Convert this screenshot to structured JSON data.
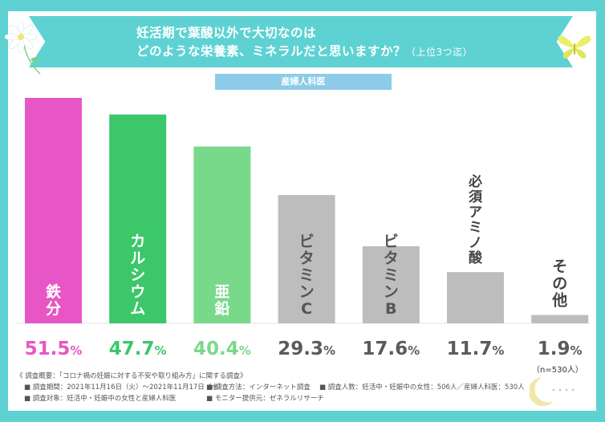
{
  "title": {
    "line1": "妊活期で葉酸以外で大切なのは",
    "line2_main": "どのような栄養素、ミネラルだと思いますか？",
    "line2_note": "（上位3つ迄）"
  },
  "group_label": "産婦人科医",
  "sample_note": "（n=530人）",
  "footer": {
    "survey_overview": "《 調査概要：「コロナ禍の妊娠に対する不安や取り組み方」に関する調査》",
    "period": "■ 調査期間：2021年11月16日（火）〜2021年11月17日（水）",
    "method": "■ 調査方法：インターネット調査",
    "respondents": "■ 調査人数：妊活中・妊娠中の女性：506人／産婦人科医：530人",
    "target": "■ 調査対象：妊活中・妊娠中の女性と産婦人科医",
    "provider": "■ モニター提供元：ゼネラルリサーチ"
  },
  "colors": {
    "frame": "#5ed2d3",
    "group_label_bg": "#8ecbe8",
    "iron": "#e855c4",
    "calcium": "#3cc76a",
    "zinc": "#79d98a",
    "gray": "#bdbdbd",
    "gray_text": "#5b5b5b"
  },
  "chart_data": {
    "type": "bar",
    "categories": [
      "鉄分",
      "カルシウム",
      "亜鉛",
      "ビタミンC",
      "ビタミンB",
      "必須アミノ酸",
      "その他"
    ],
    "values": [
      51.5,
      47.7,
      40.4,
      29.3,
      17.6,
      11.7,
      1.9
    ],
    "value_labels": [
      {
        "big": "51.5",
        "small": "%"
      },
      {
        "big": "47.7",
        "small": "%"
      },
      {
        "big": "40.4",
        "small": "%"
      },
      {
        "big": "29.3",
        "small": "%"
      },
      {
        "big": "17.6",
        "small": "%"
      },
      {
        "big": "11.7",
        "small": "%"
      },
      {
        "big": "1.9",
        "small": "%"
      }
    ],
    "bar_colors": [
      "#e855c4",
      "#3cc76a",
      "#79d98a",
      "#bdbdbd",
      "#bdbdbd",
      "#bdbdbd",
      "#bdbdbd"
    ],
    "label_colors": [
      "#e855c4",
      "#3cc76a",
      "#79d98a",
      "#5b5b5b",
      "#5b5b5b",
      "#5b5b5b",
      "#5b5b5b"
    ],
    "ylim": [
      0,
      55
    ],
    "xlabel": "",
    "ylabel": "",
    "grid": false
  }
}
